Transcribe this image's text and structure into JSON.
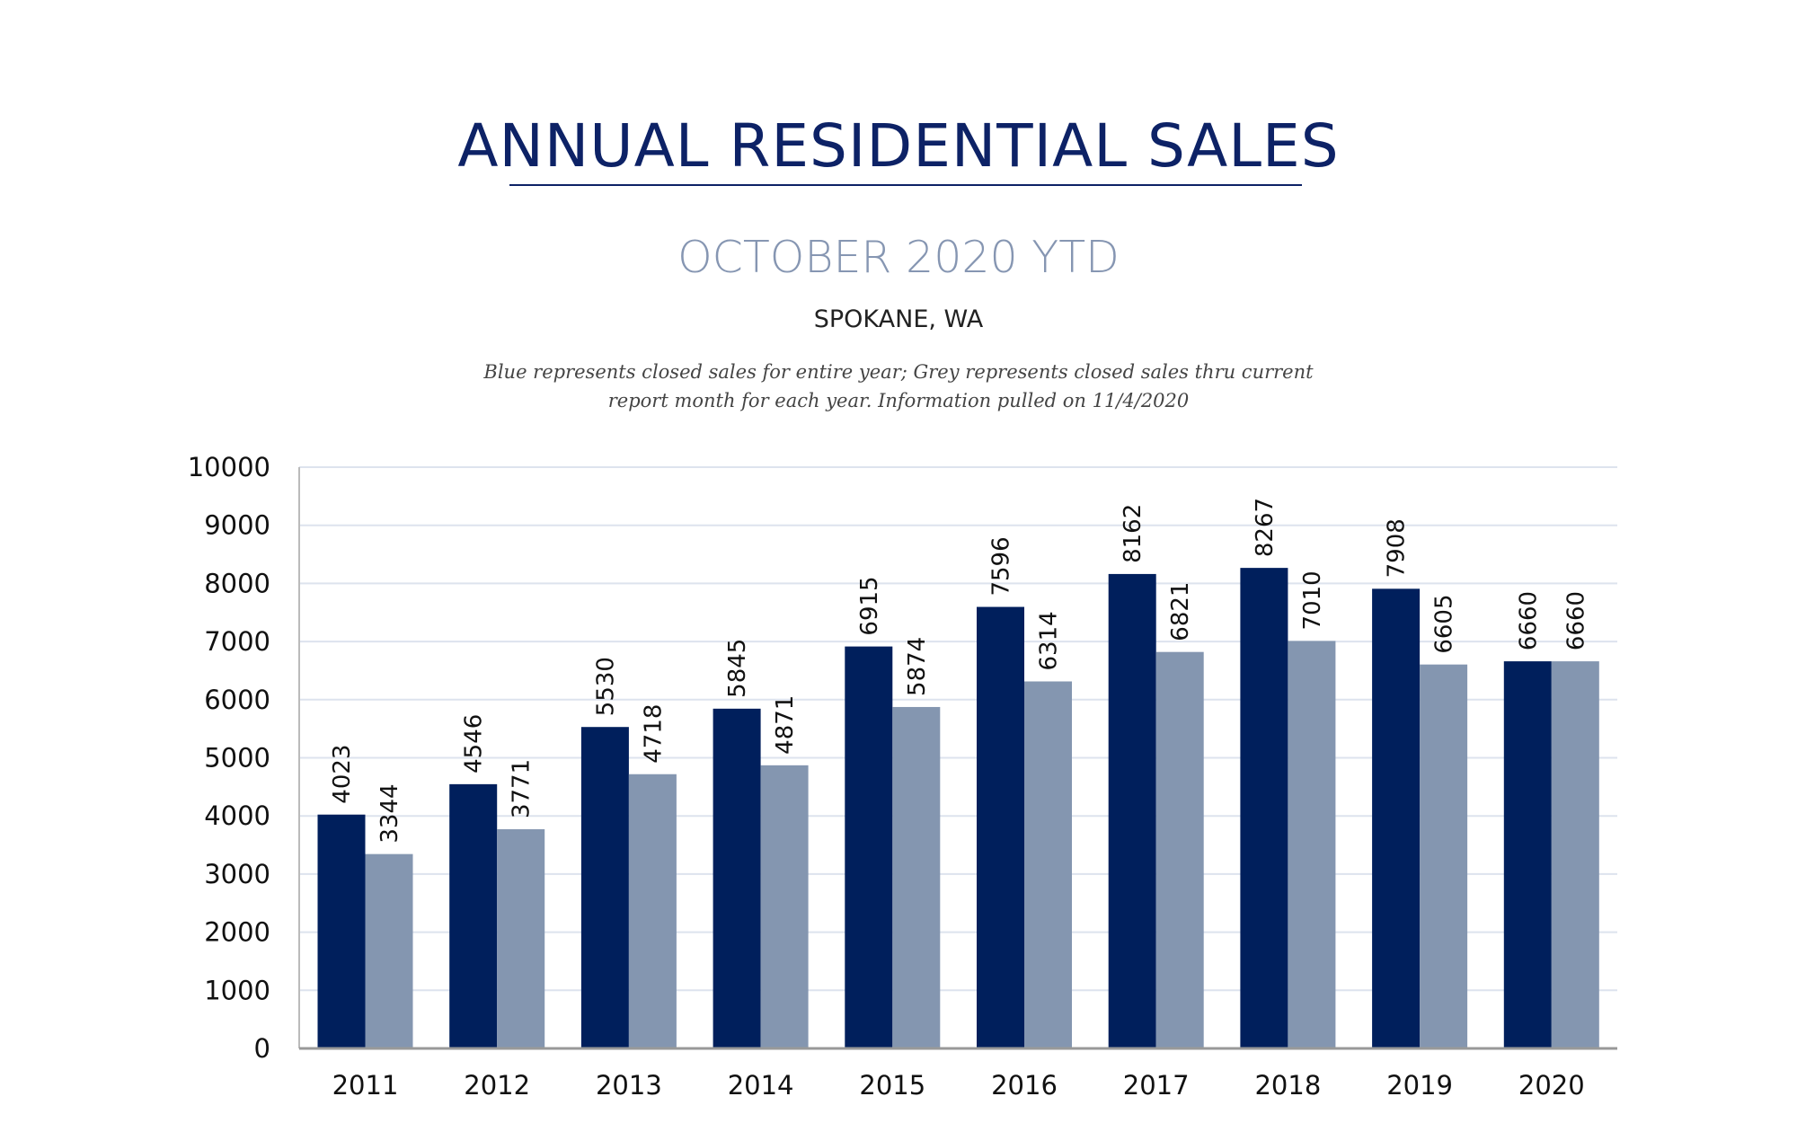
{
  "header": {
    "title": "ANNUAL RESIDENTIAL SALES",
    "subtitle": "OCTOBER 2020 YTD",
    "location": "SPOKANE, WA",
    "note_line1": "Blue represents closed sales for entire year; Grey represents closed sales thru current",
    "note_line2": "report month for each year.  Information pulled on 11/4/2020"
  },
  "chart_data": {
    "type": "bar",
    "categories": [
      "2011",
      "2012",
      "2013",
      "2014",
      "2015",
      "2016",
      "2017",
      "2018",
      "2019",
      "2020"
    ],
    "series": [
      {
        "values": [
          4023,
          4546,
          5530,
          5845,
          6915,
          7596,
          8162,
          8267,
          7908,
          6660
        ],
        "color": "#001f5c"
      },
      {
        "values": [
          3344,
          3771,
          4718,
          4871,
          5874,
          6314,
          6821,
          7010,
          6605,
          6660
        ],
        "color": "#8496b0"
      }
    ],
    "ylim": [
      0,
      10000
    ],
    "yticks": [
      0,
      1000,
      2000,
      3000,
      4000,
      5000,
      6000,
      7000,
      8000,
      9000,
      10000
    ],
    "grid": true,
    "data_labels": true,
    "title": "",
    "xlabel": "",
    "ylabel": ""
  }
}
